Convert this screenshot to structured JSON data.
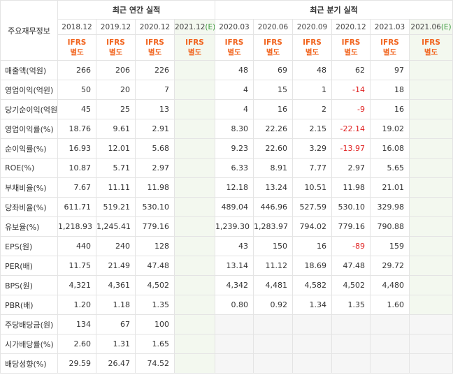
{
  "header": {
    "corner_label": "주요재무정보",
    "annual_title": "최근 연간 실적",
    "quarter_title": "최근 분기 실적",
    "estimate_mark": "(E)",
    "ifrs_line1": "IFRS",
    "ifrs_line2": "별도",
    "annual_periods": [
      "2018.12",
      "2019.12",
      "2020.12",
      "2021.12"
    ],
    "quarter_periods": [
      "2020.03",
      "2020.06",
      "2020.09",
      "2020.12",
      "2021.03",
      "2021.06"
    ]
  },
  "rows": [
    {
      "label": "매출액(억원)",
      "annual": [
        "266",
        "206",
        "226",
        ""
      ],
      "quarter": [
        "48",
        "69",
        "48",
        "62",
        "97",
        ""
      ]
    },
    {
      "label": "영업이익(억원)",
      "annual": [
        "50",
        "20",
        "7",
        ""
      ],
      "quarter": [
        "4",
        "15",
        "1",
        "-14",
        "18",
        ""
      ]
    },
    {
      "label": "당기순이익(억원)",
      "annual": [
        "45",
        "25",
        "13",
        ""
      ],
      "quarter": [
        "4",
        "16",
        "2",
        "-9",
        "16",
        ""
      ]
    },
    {
      "label": "영업이익률(%)",
      "annual": [
        "18.76",
        "9.61",
        "2.91",
        ""
      ],
      "quarter": [
        "8.30",
        "22.26",
        "2.15",
        "-22.14",
        "19.02",
        ""
      ]
    },
    {
      "label": "순이익률(%)",
      "annual": [
        "16.93",
        "12.01",
        "5.68",
        ""
      ],
      "quarter": [
        "9.23",
        "22.60",
        "3.29",
        "-13.97",
        "16.08",
        ""
      ]
    },
    {
      "label": "ROE(%)",
      "annual": [
        "10.87",
        "5.71",
        "2.97",
        ""
      ],
      "quarter": [
        "6.33",
        "8.91",
        "7.77",
        "2.97",
        "5.65",
        ""
      ]
    },
    {
      "label": "부채비율(%)",
      "annual": [
        "7.67",
        "11.11",
        "11.98",
        ""
      ],
      "quarter": [
        "12.18",
        "13.24",
        "10.51",
        "11.98",
        "21.01",
        ""
      ]
    },
    {
      "label": "당좌비율(%)",
      "annual": [
        "611.71",
        "519.21",
        "530.10",
        ""
      ],
      "quarter": [
        "489.04",
        "446.96",
        "527.59",
        "530.10",
        "329.98",
        ""
      ]
    },
    {
      "label": "유보율(%)",
      "annual": [
        "1,218.93",
        "1,245.41",
        "779.16",
        ""
      ],
      "quarter": [
        "1,239.30",
        "1,283.97",
        "794.02",
        "779.16",
        "790.88",
        ""
      ]
    },
    {
      "label": "EPS(원)",
      "annual": [
        "440",
        "240",
        "128",
        ""
      ],
      "quarter": [
        "43",
        "150",
        "16",
        "-89",
        "159",
        ""
      ]
    },
    {
      "label": "PER(배)",
      "annual": [
        "11.75",
        "21.49",
        "47.48",
        ""
      ],
      "quarter": [
        "13.14",
        "11.12",
        "18.69",
        "47.48",
        "29.72",
        ""
      ]
    },
    {
      "label": "BPS(원)",
      "annual": [
        "4,321",
        "4,361",
        "4,502",
        ""
      ],
      "quarter": [
        "4,342",
        "4,481",
        "4,582",
        "4,502",
        "4,480",
        ""
      ]
    },
    {
      "label": "PBR(배)",
      "annual": [
        "1.20",
        "1.18",
        "1.35",
        ""
      ],
      "quarter": [
        "0.80",
        "0.92",
        "1.34",
        "1.35",
        "1.60",
        ""
      ]
    },
    {
      "label": "주당배당금(원)",
      "annual": [
        "134",
        "67",
        "100",
        ""
      ],
      "quarter": [
        "",
        "",
        "",
        "",
        "",
        ""
      ]
    },
    {
      "label": "시가배당률(%)",
      "annual": [
        "2.60",
        "1.31",
        "1.65",
        ""
      ],
      "quarter": [
        "",
        "",
        "",
        "",
        "",
        ""
      ]
    },
    {
      "label": "배당성향(%)",
      "annual": [
        "29.59",
        "26.47",
        "74.52",
        ""
      ],
      "quarter": [
        "",
        "",
        "",
        "",
        "",
        ""
      ]
    }
  ],
  "colors": {
    "negative": "#e02020",
    "ifrs": "#f1641e",
    "estimate_bg": "#f3f8ef",
    "estimate_mark": "#3d9a3d"
  }
}
